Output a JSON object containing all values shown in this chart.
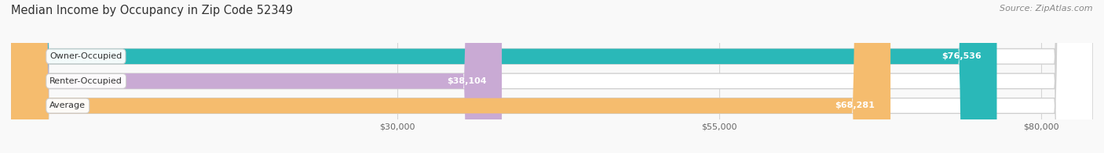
{
  "title": "Median Income by Occupancy in Zip Code 52349",
  "source": "Source: ZipAtlas.com",
  "categories": [
    "Owner-Occupied",
    "Renter-Occupied",
    "Average"
  ],
  "values": [
    76536,
    38104,
    68281
  ],
  "bar_colors": [
    "#2ab8b8",
    "#c9aad4",
    "#f5bc6e"
  ],
  "bar_bg_color": "#e8e8e8",
  "value_labels": [
    "$76,536",
    "$38,104",
    "$68,281"
  ],
  "x_ticks": [
    30000,
    55000,
    80000
  ],
  "x_tick_labels": [
    "$30,000",
    "$55,000",
    "$80,000"
  ],
  "xmin": 0,
  "xmax": 84000,
  "title_fontsize": 10.5,
  "source_fontsize": 8,
  "label_fontsize": 8,
  "value_fontsize": 8,
  "tick_fontsize": 8,
  "bar_height": 0.62,
  "background_color": "#f9f9f9"
}
